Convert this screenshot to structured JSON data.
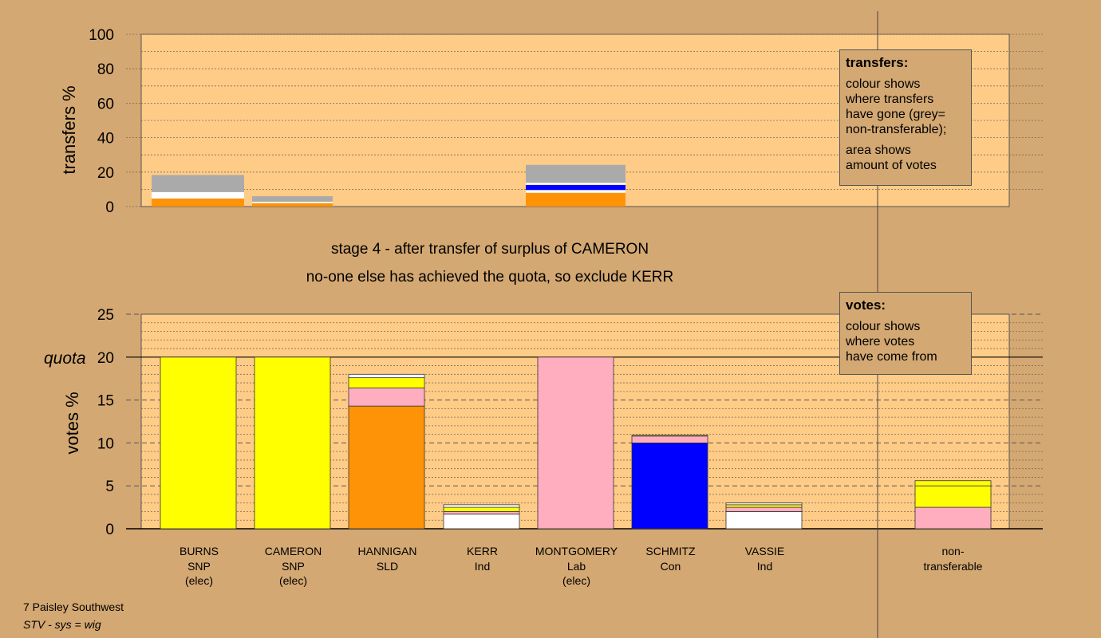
{
  "titles": {
    "stage": "stage 4 - after transfer of surplus of CAMERON",
    "note": "no-one else has achieved the quota, so exclude KERR"
  },
  "footer": {
    "line1": "7 Paisley Southwest",
    "line2": "STV - sys = wig"
  },
  "legend_transfers": {
    "heading": "transfers:",
    "p1": "colour shows\nwhere transfers\nhave gone (grey=\nnon-transferable);",
    "p2": "area shows\namount of votes"
  },
  "legend_votes": {
    "heading": "votes:",
    "p1": "colour shows\nwhere votes\nhave come from"
  },
  "colors": {
    "background": "#d4a872",
    "plot": "#ffcc88",
    "SNP": "#ffff00",
    "SLD": "#ff9308",
    "Lab": "#ffaec0",
    "Con": "#0000ff",
    "Ind": "#ffffff",
    "nontransferable": "#aaaaaa"
  },
  "chart_data": [
    {
      "type": "bar",
      "stacked": true,
      "ylabel": "transfers %",
      "ylim": [
        0,
        100
      ],
      "yticks": [
        0,
        20,
        40,
        60,
        80,
        100
      ],
      "grid": "dotted",
      "bars": [
        {
          "source": "BURNS",
          "size": 18.3,
          "segments": [
            {
              "party": "SLD",
              "value": 4.7
            },
            {
              "party": "Ind",
              "value": 3.7
            },
            {
              "party": "nontransferable",
              "value": 9.9
            }
          ]
        },
        {
          "source": "CAMERON",
          "size": 6.0,
          "segments": [
            {
              "party": "SLD",
              "value": 2.0
            },
            {
              "party": "Ind",
              "value": 0.8
            },
            {
              "party": "nontransferable",
              "value": 3.2
            }
          ]
        },
        {
          "source": "MONTGOMERY",
          "size": 24.2,
          "segments": [
            {
              "party": "SLD",
              "value": 8.0
            },
            {
              "party": "Ind",
              "value": 1.6
            },
            {
              "party": "Con",
              "value": 3.0
            },
            {
              "party": "Ind",
              "value": 1.2
            },
            {
              "party": "nontransferable",
              "value": 10.4
            }
          ]
        }
      ]
    },
    {
      "type": "bar",
      "stacked": true,
      "ylabel": "votes %",
      "ylim": [
        0,
        25
      ],
      "yticks": [
        0,
        5,
        10,
        15,
        20,
        25
      ],
      "quota": 20,
      "quota_label": "quota",
      "grid": "dashed",
      "candidates": [
        {
          "name": "BURNS",
          "party": "SNP",
          "status": "(elec)",
          "segments": [
            {
              "party": "SNP",
              "value": 20.0
            }
          ]
        },
        {
          "name": "CAMERON",
          "party": "SNP",
          "status": "(elec)",
          "segments": [
            {
              "party": "SNP",
              "value": 20.0
            }
          ]
        },
        {
          "name": "HANNIGAN",
          "party": "SLD",
          "status": "",
          "segments": [
            {
              "party": "SLD",
              "value": 14.3
            },
            {
              "party": "Lab",
              "value": 2.1
            },
            {
              "party": "SNP",
              "value": 1.2
            },
            {
              "party": "Ind",
              "value": 0.4
            }
          ]
        },
        {
          "name": "KERR",
          "party": "Ind",
          "status": "",
          "segments": [
            {
              "party": "Ind",
              "value": 1.7
            },
            {
              "party": "Lab",
              "value": 0.3
            },
            {
              "party": "SNP",
              "value": 0.5
            },
            {
              "party": "Ind",
              "value": 0.3
            }
          ]
        },
        {
          "name": "MONTGOMERY",
          "party": "Lab",
          "status": "(elec)",
          "segments": [
            {
              "party": "Lab",
              "value": 20.0
            }
          ]
        },
        {
          "name": "SCHMITZ",
          "party": "Con",
          "status": "",
          "segments": [
            {
              "party": "Con",
              "value": 10.0
            },
            {
              "party": "Lab",
              "value": 0.8
            },
            {
              "party": "SNP",
              "value": 0.1
            }
          ]
        },
        {
          "name": "VASSIE",
          "party": "Ind",
          "status": "",
          "segments": [
            {
              "party": "Ind",
              "value": 2.0
            },
            {
              "party": "Lab",
              "value": 0.5
            },
            {
              "party": "SNP",
              "value": 0.3
            },
            {
              "party": "Ind",
              "value": 0.2
            }
          ]
        }
      ],
      "nontransferable": {
        "label1": "non-",
        "label2": "transferable",
        "segments": [
          {
            "party": "Lab",
            "value": 2.5
          },
          {
            "party": "SNP",
            "value": 2.5
          },
          {
            "party": "SNP",
            "value": 0.6
          }
        ]
      }
    }
  ]
}
